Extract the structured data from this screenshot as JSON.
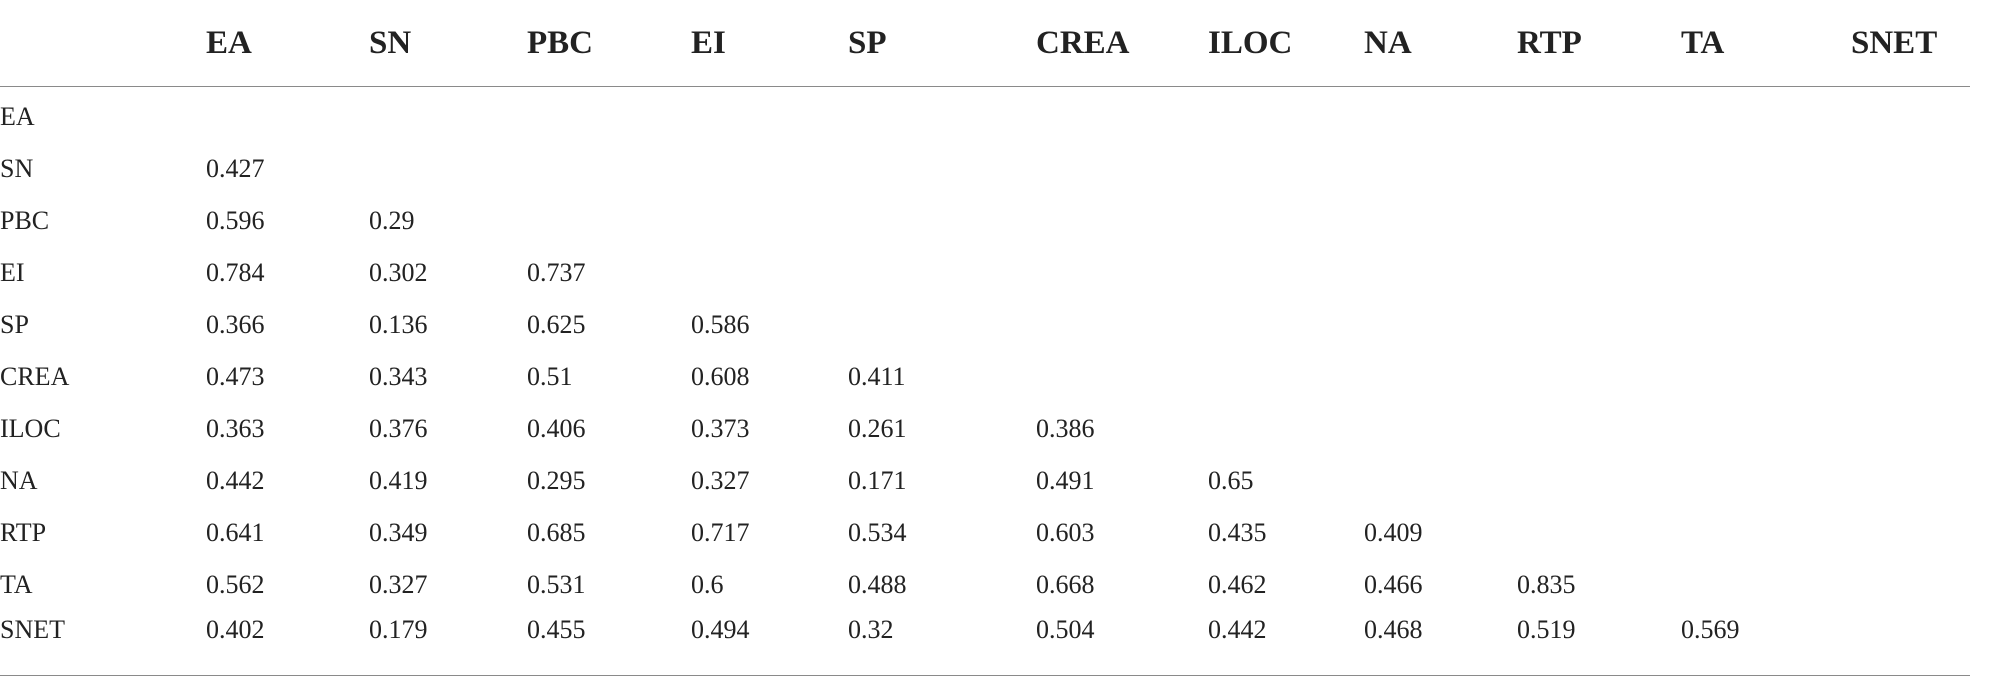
{
  "table": {
    "columns": [
      "",
      "EA",
      "SN",
      "PBC",
      "EI",
      "SP",
      "CREA",
      "ILOC",
      "NA",
      "RTP",
      "TA",
      "SNET"
    ],
    "rows": [
      {
        "label": "EA",
        "values": [
          "",
          "",
          "",
          "",
          "",
          "",
          "",
          "",
          "",
          "",
          ""
        ]
      },
      {
        "label": "SN",
        "values": [
          "0.427",
          "",
          "",
          "",
          "",
          "",
          "",
          "",
          "",
          "",
          ""
        ]
      },
      {
        "label": "PBC",
        "values": [
          "0.596",
          "0.29",
          "",
          "",
          "",
          "",
          "",
          "",
          "",
          "",
          ""
        ]
      },
      {
        "label": "EI",
        "values": [
          "0.784",
          "0.302",
          "0.737",
          "",
          "",
          "",
          "",
          "",
          "",
          "",
          ""
        ]
      },
      {
        "label": "SP",
        "values": [
          "0.366",
          "0.136",
          "0.625",
          "0.586",
          "",
          "",
          "",
          "",
          "",
          "",
          ""
        ]
      },
      {
        "label": "CREA",
        "values": [
          "0.473",
          "0.343",
          "0.51",
          "0.608",
          "0.411",
          "",
          "",
          "",
          "",
          "",
          ""
        ]
      },
      {
        "label": "ILOC",
        "values": [
          "0.363",
          "0.376",
          "0.406",
          "0.373",
          "0.261",
          "0.386",
          "",
          "",
          "",
          "",
          ""
        ]
      },
      {
        "label": "NA",
        "values": [
          "0.442",
          "0.419",
          "0.295",
          "0.327",
          "0.171",
          "0.491",
          "0.65",
          "",
          "",
          "",
          ""
        ]
      },
      {
        "label": "RTP",
        "values": [
          "0.641",
          "0.349",
          "0.685",
          "0.717",
          "0.534",
          "0.603",
          "0.435",
          "0.409",
          "",
          "",
          ""
        ]
      },
      {
        "label": "TA",
        "values": [
          "0.562",
          "0.327",
          "0.531",
          "0.6",
          "0.488",
          "0.668",
          "0.462",
          "0.466",
          "0.835",
          "",
          ""
        ]
      },
      {
        "label": "SNET",
        "values": [
          "0.402",
          "0.179",
          "0.455",
          "0.494",
          "0.32",
          "0.504",
          "0.442",
          "0.468",
          "0.519",
          "0.569",
          ""
        ]
      }
    ]
  }
}
